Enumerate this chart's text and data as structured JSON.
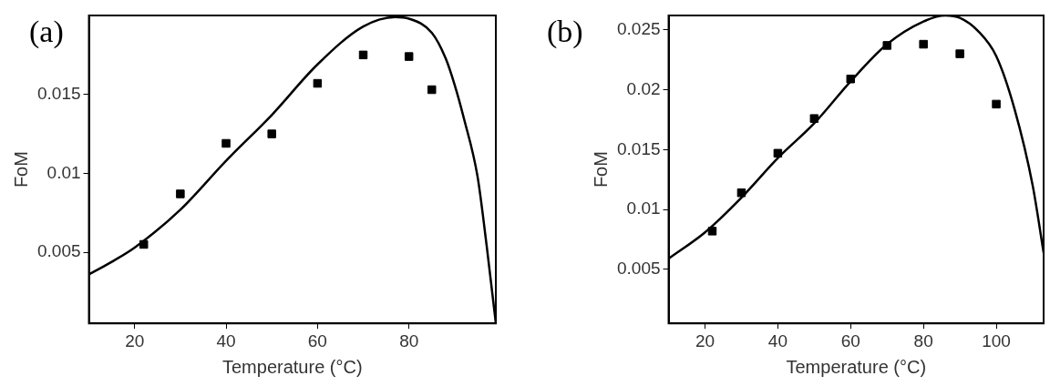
{
  "chart_data": [
    {
      "type": "scatter",
      "title": "(a)",
      "xlabel": "Temperature (°C)",
      "ylabel": "FoM",
      "xlim": [
        10,
        99
      ],
      "xticks": [
        20,
        40,
        60,
        80
      ],
      "ylim": [
        0.0005,
        0.02
      ],
      "yticks": [
        0.005,
        0.01,
        0.015
      ],
      "grid": false,
      "legend": false,
      "marker": "square",
      "series": [
        {
          "color": "#000000",
          "x": [
            22,
            30,
            40,
            50,
            60,
            70,
            80,
            85
          ],
          "values": [
            0.0055,
            0.0087,
            0.0119,
            0.0125,
            0.0157,
            0.0175,
            0.0174,
            0.0153
          ]
        },
        {
          "type": "line",
          "color": "#000000",
          "marker": "none",
          "x": [
            10,
            15,
            20,
            30,
            40,
            50,
            60,
            70,
            77,
            80,
            85,
            88,
            90,
            92,
            95,
            97,
            99
          ],
          "values": [
            0.0036,
            0.0044,
            0.0053,
            0.0077,
            0.0108,
            0.0137,
            0.0169,
            0.0193,
            0.0199,
            0.0198,
            0.0189,
            0.0173,
            0.0156,
            0.0135,
            0.0098,
            0.0054,
            0.0005
          ]
        }
      ]
    },
    {
      "type": "scatter",
      "title": "(b)",
      "xlabel": "Temperature (°C)",
      "ylabel": "FoM",
      "xlim": [
        10,
        113
      ],
      "xticks": [
        20,
        40,
        60,
        80,
        100
      ],
      "ylim": [
        0.0005,
        0.0262
      ],
      "yticks": [
        0.005,
        0.01,
        0.015,
        0.02,
        0.025
      ],
      "grid": false,
      "legend": false,
      "marker": "square",
      "series": [
        {
          "color": "#000000",
          "x": [
            22,
            30,
            40,
            50,
            60,
            70,
            80,
            90,
            100
          ],
          "values": [
            0.0082,
            0.0114,
            0.0147,
            0.0176,
            0.0209,
            0.0237,
            0.0238,
            0.023,
            0.0188
          ]
        },
        {
          "type": "line",
          "color": "#000000",
          "marker": "none",
          "x": [
            10,
            20,
            30,
            40,
            50,
            60,
            70,
            80,
            86,
            90,
            95,
            100,
            105,
            110,
            113
          ],
          "values": [
            0.0059,
            0.0081,
            0.011,
            0.0143,
            0.0172,
            0.0207,
            0.0238,
            0.0257,
            0.0262,
            0.026,
            0.0249,
            0.0228,
            0.0184,
            0.012,
            0.0064
          ]
        }
      ]
    }
  ]
}
